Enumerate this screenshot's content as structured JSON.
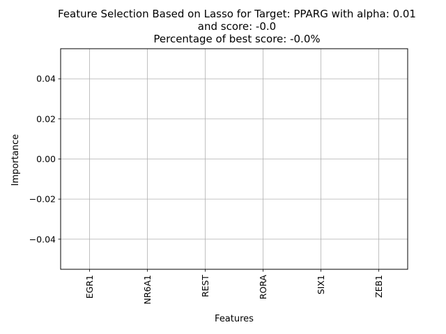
{
  "chart_data": {
    "type": "bar",
    "title_lines": [
      "Feature Selection Based on Lasso for Target: PPARG with alpha: 0.01",
      "and score: -0.0",
      " Percentage of best score: -0.0%"
    ],
    "xlabel": "Features",
    "ylabel": "Importance",
    "categories": [
      "EGR1",
      "NR6A1",
      "REST",
      "RORA",
      "SIX1",
      "ZEB1"
    ],
    "values": [
      0,
      0,
      0,
      0,
      0,
      0
    ],
    "ylim": [
      -0.055,
      0.055
    ],
    "yticks": [
      -0.04,
      -0.02,
      0.0,
      0.02,
      0.04
    ],
    "ytick_labels": [
      "−0.04",
      "−0.02",
      "0.00",
      "0.02",
      "0.04"
    ],
    "grid": true,
    "legend": "none",
    "colors": {
      "grid": "#b0b0b0",
      "axes": "#000000",
      "bar": "#1f77b4"
    }
  }
}
